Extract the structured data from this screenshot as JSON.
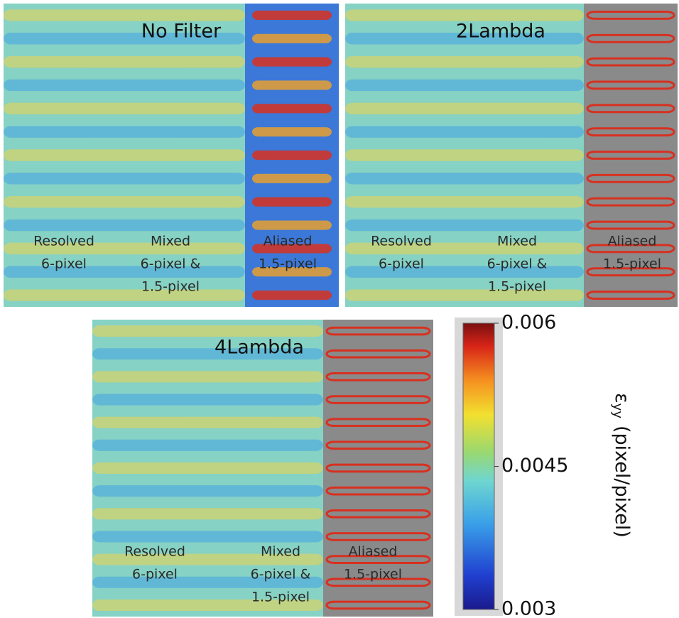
{
  "panels": [
    {
      "title": "No Filter",
      "regions": [
        {
          "lines": [
            "Resolved",
            "6-pixel"
          ]
        },
        {
          "lines": [
            "Mixed",
            "6-pixel &",
            "1.5-pixel"
          ]
        },
        {
          "lines": [
            "Aliased",
            "1.5-pixel"
          ]
        }
      ]
    },
    {
      "title": "2Lambda",
      "regions": [
        {
          "lines": [
            "Resolved",
            "6-pixel"
          ]
        },
        {
          "lines": [
            "Mixed",
            "6-pixel &",
            "1.5-pixel"
          ]
        },
        {
          "lines": [
            "Aliased",
            "1.5-pixel"
          ]
        }
      ]
    },
    {
      "title": "4Lambda",
      "regions": [
        {
          "lines": [
            "Resolved",
            "6-pixel"
          ]
        },
        {
          "lines": [
            "Mixed",
            "6-pixel &",
            "1.5-pixel"
          ]
        },
        {
          "lines": [
            "Aliased",
            "1.5-pixel"
          ]
        }
      ]
    }
  ],
  "colorbar": {
    "symbol": "ε",
    "subscript": "yy",
    "unit": "(pixel/pixel)",
    "lim": [
      0.003,
      0.006
    ],
    "ticks": [
      0.003,
      0.0045,
      0.006
    ]
  }
}
